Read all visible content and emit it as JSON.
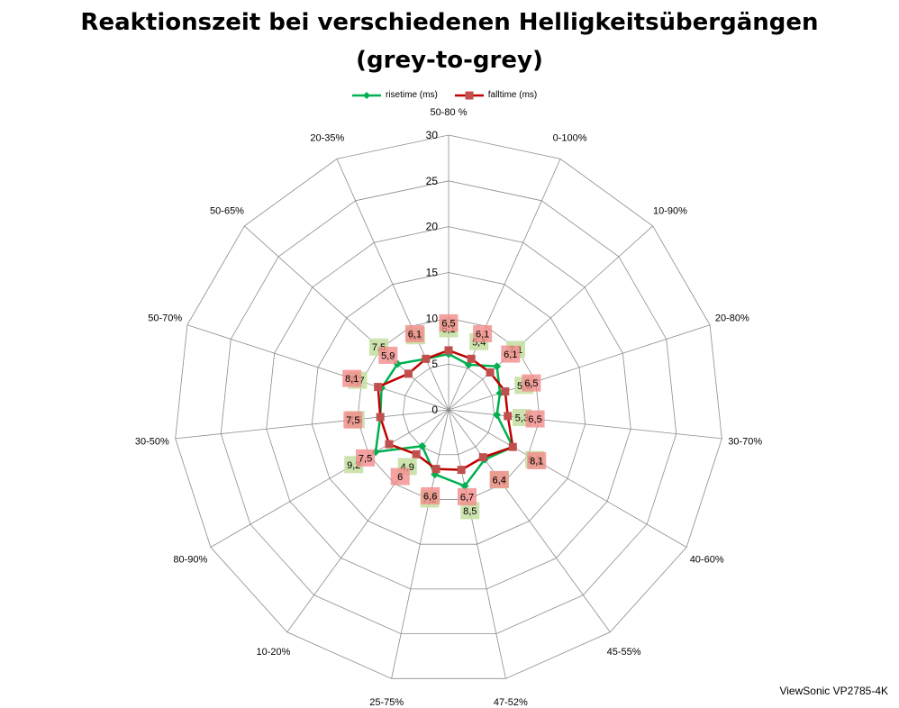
{
  "chart_data": {
    "type": "radar",
    "title": "Reaktionszeit bei verschiedenen Helligkeitsübergängen",
    "subtitle": "(grey-to-grey)",
    "categories": [
      "50-80 %",
      "0-100%",
      "10-90%",
      "20-80%",
      "30-70%",
      "40-60%",
      "45-55%",
      "47-52%",
      "25-75%",
      "10-20%",
      "80-90%",
      "30-50%",
      "50-70%",
      "50-65%",
      "20-35%"
    ],
    "series": [
      {
        "name": "risetime (ms)",
        "color": "#00b050",
        "label_bg": "#c6e0a4",
        "values": [
          6.1,
          5.4,
          7.1,
          5.9,
          5.3,
          8.1,
          6.7,
          8.5,
          7.2,
          4.9,
          9.2,
          7.5,
          7.7,
          7.5,
          6.1
        ],
        "labels": [
          "6,1",
          "5,4",
          "7,1",
          "5,9",
          "5,3",
          "8,1",
          "6,7",
          "8,5",
          "7,2",
          "4,9",
          "9,2",
          "7,5",
          "7,7",
          "7,5",
          "6,1"
        ]
      },
      {
        "name": "falltime (ms)",
        "color": "#c00000",
        "label_bg": "#f28b8b",
        "values": [
          6.5,
          6.1,
          6.1,
          6.5,
          6.5,
          8.1,
          6.4,
          6.7,
          6.6,
          6.0,
          7.5,
          7.5,
          8.1,
          5.9,
          6.1
        ],
        "labels": [
          "6,5",
          "6,1",
          "6,1",
          "6,5",
          "6,5",
          "8,1",
          "6,4",
          "6,7",
          "6,6",
          "6",
          "7,5",
          "7,5",
          "8,1",
          "5,9",
          "6,1"
        ]
      }
    ],
    "rlim": [
      0,
      30
    ],
    "ticks": [
      "0",
      "5",
      "10",
      "15",
      "20",
      "25",
      "30"
    ],
    "legend": "top"
  },
  "watermark": "ViewSonic VP2785-4K"
}
